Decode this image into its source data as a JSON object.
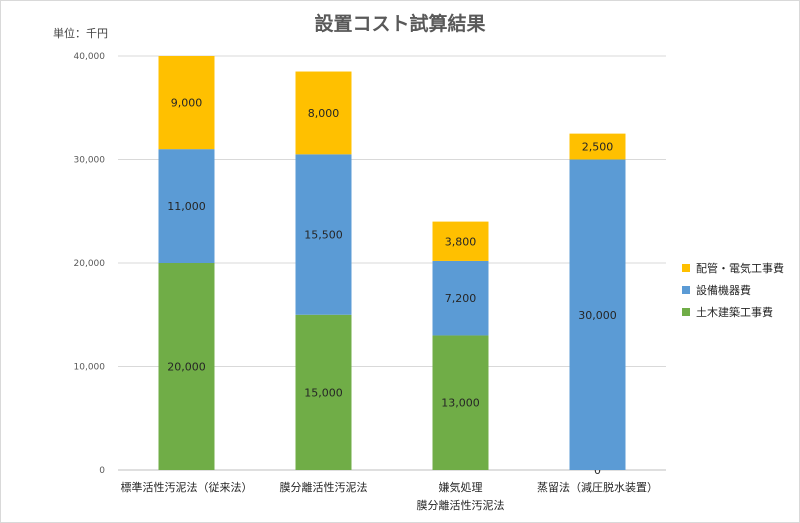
{
  "title": "設置コスト試算結果",
  "unit_label": "単位：千円",
  "colors": {
    "civil": "#70ad47",
    "equipment": "#5b9bd5",
    "piping": "#ffc000",
    "grid": "#d9d9d9",
    "axis": "#bfbfbf"
  },
  "chart_data": {
    "type": "bar",
    "stacked": true,
    "categories": [
      "標準活性汚泥法（従来法）",
      "膜分離活性汚泥法",
      "嫌気処理\n膜分離活性汚泥法",
      "蒸留法（減圧脱水装置）"
    ],
    "series": [
      {
        "name": "土木建築工事費",
        "values": [
          20000,
          15000,
          13000,
          0
        ]
      },
      {
        "name": "設備機器費",
        "values": [
          11000,
          15500,
          7200,
          30000
        ]
      },
      {
        "name": "配管・電気工事費",
        "values": [
          9000,
          8000,
          3800,
          2500
        ]
      }
    ],
    "ylim": [
      0,
      40000
    ],
    "yticks": [
      "0",
      "10,000",
      "20,000",
      "30,000",
      "40,000"
    ],
    "grid": true,
    "legend_position": "right",
    "legend_order": [
      "配管・電気工事費",
      "設備機器費",
      "土木建築工事費"
    ]
  }
}
